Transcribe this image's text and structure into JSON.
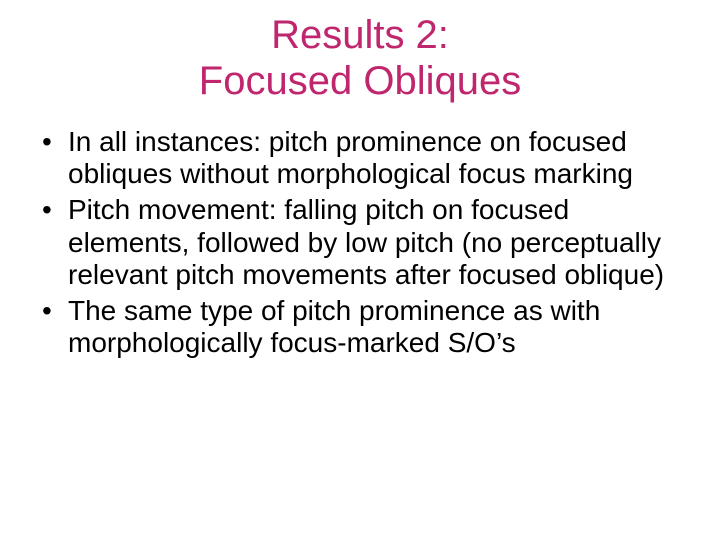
{
  "title_line1": "Results 2:",
  "title_line2": "Focused Obliques",
  "title_color": "#c0266e",
  "body_color": "#000000",
  "bullets": [
    "In all instances: pitch prominence on focused obliques without morphological focus marking",
    "Pitch movement: falling pitch on focused elements, followed by low pitch (no perceptually relevant pitch movements after focused oblique)",
    "The same type of pitch prominence as with morphologically focus-marked S/O’s"
  ]
}
